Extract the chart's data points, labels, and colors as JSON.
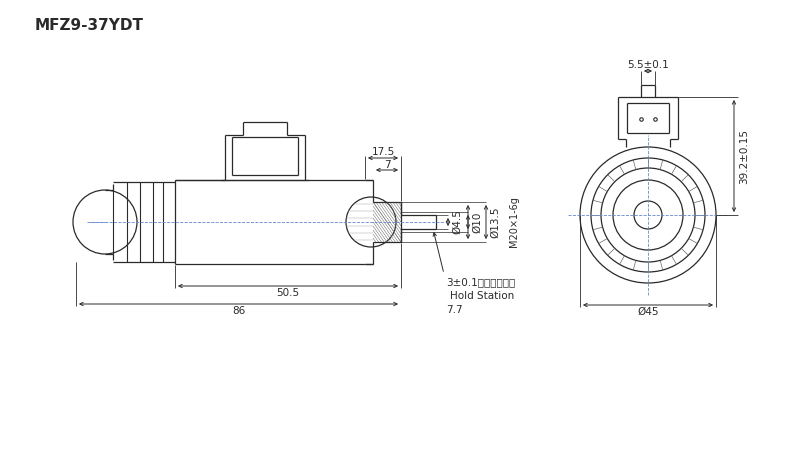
{
  "title": "MFZ9-37YDT",
  "bg_color": "#ffffff",
  "line_color": "#2a2a2a",
  "dim_color": "#2a2a2a",
  "center_color": "#6688cc",
  "annotations": {
    "dim_17_5": "17.5",
    "dim_7": "7",
    "dim_10": "Ø10",
    "dim_13_5": "Ø13.5",
    "dim_4_5": "Ø4.5",
    "dim_M20": "M20×1-6g",
    "dim_3": "3±0.1（吸合位置）",
    "hold_station": "Hold Station",
    "dim_7_7": "7.7",
    "dim_50_5": "50.5",
    "dim_86": "86",
    "dim_5_5": "5.5±0.1",
    "dim_39_2": "39.2±0.15",
    "dim_45": "Ø45"
  }
}
